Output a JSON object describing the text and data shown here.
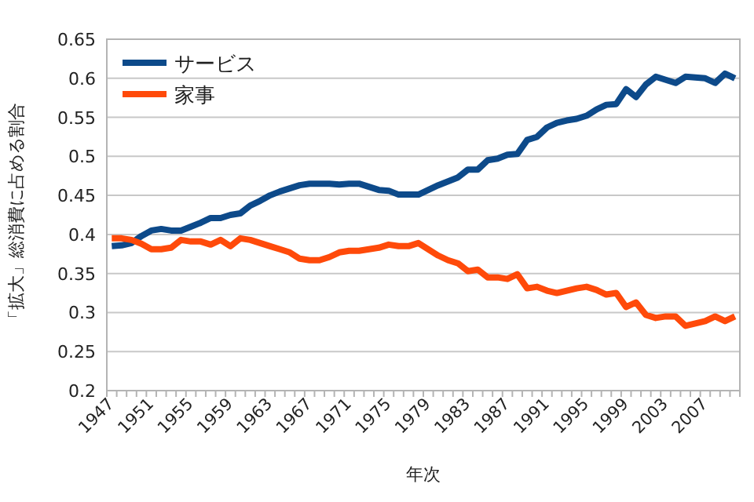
{
  "chart_data": {
    "type": "line",
    "xlabel": "年次",
    "ylabel": "「拡大」総消費に占める割合",
    "categories": [
      "1947",
      null,
      null,
      null,
      "1951",
      null,
      null,
      null,
      "1955",
      null,
      null,
      null,
      "1959",
      null,
      null,
      null,
      "1963",
      null,
      null,
      null,
      "1967",
      null,
      null,
      null,
      "1971",
      null,
      null,
      null,
      "1975",
      null,
      null,
      null,
      "1979",
      null,
      null,
      null,
      "1983",
      null,
      null,
      null,
      "1987",
      null,
      null,
      null,
      "1991",
      null,
      null,
      null,
      "1995",
      null,
      null,
      null,
      "1999",
      null,
      null,
      null,
      "2003",
      null,
      null,
      null,
      "2007",
      null,
      null,
      null
    ],
    "series": [
      {
        "name": "サービス",
        "color": "#0d4a8a",
        "values": [
          0.385,
          0.386,
          0.389,
          0.398,
          0.405,
          0.407,
          0.405,
          0.405,
          0.41,
          0.415,
          0.421,
          0.421,
          0.425,
          0.427,
          0.437,
          0.443,
          0.45,
          0.455,
          0.459,
          0.463,
          0.465,
          0.465,
          0.465,
          0.464,
          0.465,
          0.465,
          0.461,
          0.457,
          0.456,
          0.451,
          0.451,
          0.451,
          0.457,
          0.463,
          0.468,
          0.473,
          0.483,
          0.483,
          0.495,
          0.497,
          0.502,
          0.503,
          0.521,
          0.525,
          0.537,
          0.543,
          0.546,
          0.548,
          0.552,
          0.56,
          0.566,
          0.567,
          0.586,
          0.576,
          0.592,
          0.602,
          0.598,
          0.594,
          0.602,
          0.601,
          0.6,
          0.594,
          0.606,
          0.6
        ]
      },
      {
        "name": "家事",
        "color": "#ff4a0a",
        "values": [
          0.395,
          0.395,
          0.393,
          0.388,
          0.381,
          0.381,
          0.383,
          0.393,
          0.391,
          0.391,
          0.387,
          0.393,
          0.385,
          0.395,
          0.393,
          0.389,
          0.385,
          0.381,
          0.377,
          0.369,
          0.367,
          0.367,
          0.371,
          0.377,
          0.379,
          0.379,
          0.381,
          0.383,
          0.387,
          0.385,
          0.385,
          0.389,
          0.381,
          0.373,
          0.367,
          0.363,
          0.353,
          0.355,
          0.345,
          0.345,
          0.343,
          0.349,
          0.331,
          0.333,
          0.328,
          0.325,
          0.328,
          0.331,
          0.333,
          0.329,
          0.323,
          0.325,
          0.307,
          0.313,
          0.297,
          0.293,
          0.295,
          0.295,
          0.283,
          0.286,
          0.289,
          0.295,
          0.289,
          0.295
        ]
      }
    ],
    "ylim": [
      0.2,
      0.65
    ],
    "yticks": [
      0.2,
      0.25,
      0.3,
      0.35,
      0.4,
      0.45,
      0.5,
      0.55,
      0.6,
      0.65
    ],
    "grid": "y",
    "legend": "top left",
    "marker": "none",
    "line_style": "solid"
  }
}
